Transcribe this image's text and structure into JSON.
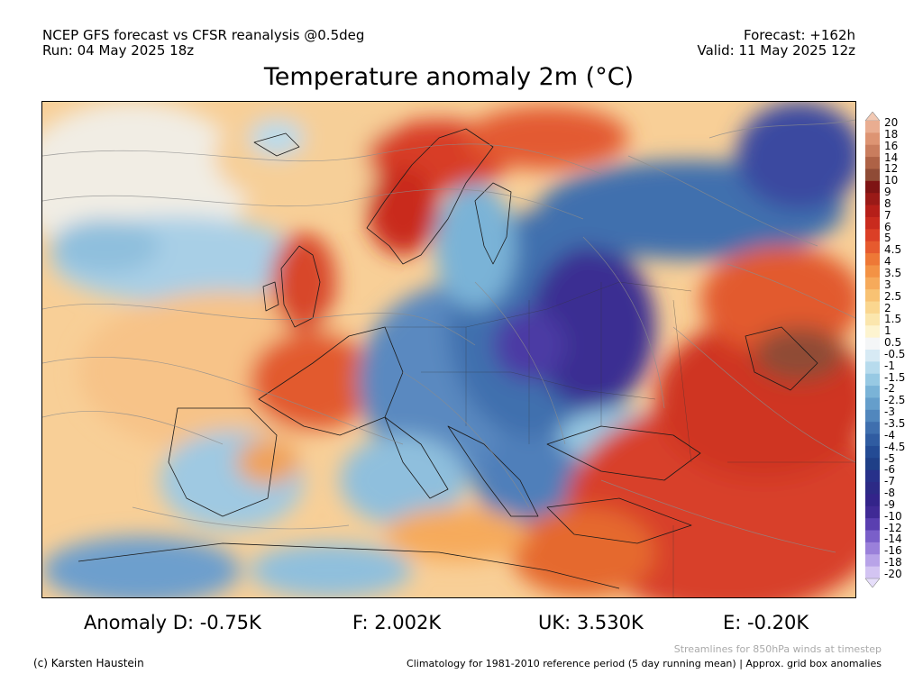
{
  "header": {
    "line1_left": "NCEP GFS forecast vs CFSR reanalysis @0.5deg",
    "line2_left": "Run: 04 May 2025 18z",
    "line1_right": "Forecast: +162h",
    "line2_right": "Valid: 11 May 2025 12z"
  },
  "title": "Temperature anomaly 2m (°C)",
  "colorbar": {
    "labels": [
      "20",
      "18",
      "16",
      "14",
      "12",
      "10",
      "9",
      "8",
      "7",
      "6",
      "5",
      "4.5",
      "4",
      "3.5",
      "3",
      "2.5",
      "2",
      "1.5",
      "1",
      "0.5",
      "-0.5",
      "-1",
      "-1.5",
      "-2",
      "-2.5",
      "-3",
      "-3.5",
      "-4",
      "-4.5",
      "-5",
      "-6",
      "-7",
      "-8",
      "-9",
      "-10",
      "-12",
      "-14",
      "-16",
      "-18",
      "-20"
    ],
    "colors": [
      "#f2c9b4",
      "#e9ad91",
      "#dd9473",
      "#c97d5e",
      "#ae6246",
      "#8f4b36",
      "#7e1414",
      "#9a1a17",
      "#b51f19",
      "#c92b1e",
      "#db3f26",
      "#e65a2e",
      "#ee7836",
      "#f39245",
      "#f6aa5b",
      "#f8c273",
      "#fad68f",
      "#fbe6ad",
      "#fdf4d0",
      "#f4f6f7",
      "#d7eaf4",
      "#b7dbed",
      "#97c9e3",
      "#7ab3d7",
      "#659ecb",
      "#5187bd",
      "#3f6fae",
      "#305ca1",
      "#244b94",
      "#1f3f87",
      "#27318a",
      "#2c2a86",
      "#33248a",
      "#402a95",
      "#5a3fb0",
      "#7a5fc9",
      "#9a80da",
      "#b8a3e8",
      "#d3c4f2",
      "#e6defa"
    ]
  },
  "stats": {
    "D": "Anomaly D: -0.75K",
    "F": "F: 2.002K",
    "UK": "UK: 3.530K",
    "E": "E: -0.20K"
  },
  "footer": {
    "streamlines_note": "Streamlines for 850hPa winds at timestep",
    "credit": "(c) Karsten Haustein",
    "climatology": "Climatology for 1981-2010 reference period (5 day running mean) | Approx. grid box anomalies"
  }
}
